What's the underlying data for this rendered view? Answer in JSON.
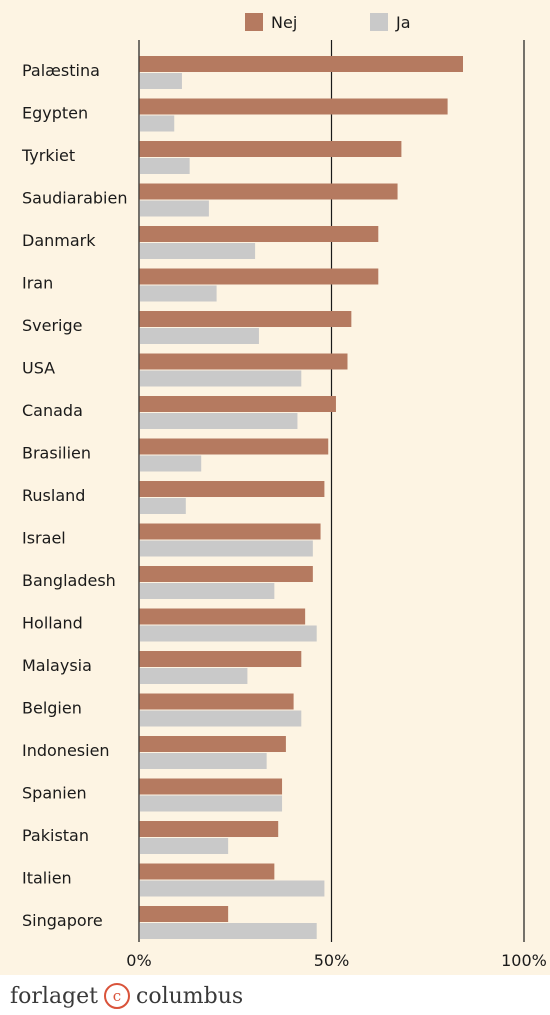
{
  "chart_data": {
    "type": "bar",
    "orientation": "horizontal",
    "categories": [
      "Palæstina",
      "Egypten",
      "Tyrkiet",
      "Saudiarabien",
      "Danmark",
      "Iran",
      "Sverige",
      "USA",
      "Canada",
      "Brasilien",
      "Rusland",
      "Israel",
      "Bangladesh",
      "Holland",
      "Malaysia",
      "Belgien",
      "Indonesien",
      "Spanien",
      "Pakistan",
      "Italien",
      "Singapore"
    ],
    "series": [
      {
        "name": "Nej",
        "color": "#b57a60",
        "values": [
          84,
          80,
          68,
          67,
          62,
          62,
          55,
          54,
          51,
          49,
          48,
          47,
          45,
          43,
          42,
          40,
          38,
          37,
          36,
          35,
          23
        ]
      },
      {
        "name": "Ja",
        "color": "#c9c9c9",
        "values": [
          11,
          9,
          13,
          18,
          30,
          20,
          31,
          42,
          41,
          16,
          12,
          45,
          35,
          46,
          28,
          42,
          33,
          37,
          23,
          48,
          46
        ]
      }
    ],
    "xlim": [
      0,
      100
    ],
    "xticks": [
      "0%",
      "50%",
      "100%"
    ],
    "xtick_values": [
      0,
      50,
      100
    ],
    "legend_position": "top",
    "grid": "vertical lines at 0%, 50%, 100%",
    "background": "#fdf4e3"
  },
  "footer": {
    "publisher_left": "forlaget",
    "publisher_symbol": "c",
    "publisher_right": "columbus"
  }
}
